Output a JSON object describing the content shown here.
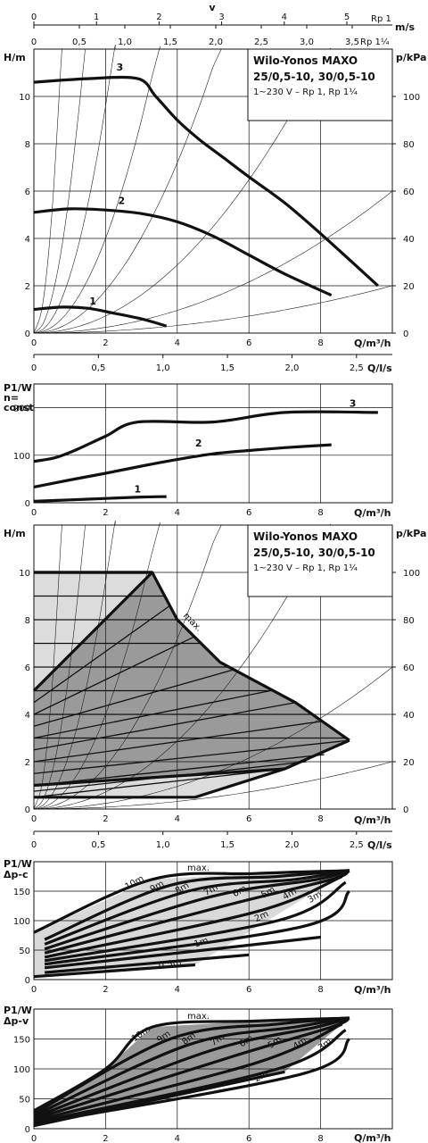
{
  "top_axes": {
    "v_label": "v",
    "v_unit": "m/s",
    "v_ticks_rp1": [
      "0",
      "1",
      "2",
      "3",
      "4",
      "5"
    ],
    "rp1_label": "Rp 1",
    "v_ticks_rp114": [
      "0",
      "0,5",
      "1,0",
      "1,5",
      "2,0",
      "2,5",
      "3,0",
      "3,5"
    ],
    "rp114_label": "Rp 1¼"
  },
  "chart_data": [
    {
      "id": "H-Q constant speed",
      "type": "line",
      "xlabel": "Q/m³/h",
      "ylabel": "H/m",
      "y2label": "p/kPa",
      "xlim": [
        0,
        10
      ],
      "ylim": [
        0,
        12
      ],
      "xticks": [
        "0",
        "2",
        "4",
        "6",
        "8"
      ],
      "yticks": [
        "0",
        "2",
        "4",
        "6",
        "8",
        "10"
      ],
      "y2ticks": [
        "0",
        "20",
        "40",
        "60",
        "80",
        "100"
      ],
      "box": {
        "title1": "Wilo-Yonos MAXO",
        "title2": "25/0,5-10, 30/0,5-10",
        "subtitle": "1~230 V – Rp 1, Rp 1¼"
      },
      "series": [
        {
          "name": "1",
          "x": [
            0,
            0.8,
            1.5,
            2.2,
            3.0,
            3.7
          ],
          "y": [
            1.0,
            1.1,
            1.05,
            0.85,
            0.6,
            0.3
          ]
        },
        {
          "name": "2",
          "x": [
            0,
            1.0,
            2.0,
            3.0,
            4.0,
            5.0,
            6.0,
            7.0,
            8.3
          ],
          "y": [
            5.1,
            5.25,
            5.2,
            5.05,
            4.7,
            4.1,
            3.3,
            2.5,
            1.6
          ]
        },
        {
          "name": "3",
          "x": [
            0,
            1.5,
            2.9,
            3.4,
            4.0,
            4.6,
            5.3,
            6.0,
            7.0,
            8.0,
            9.6
          ],
          "y": [
            10.6,
            10.75,
            10.75,
            10.0,
            9.0,
            8.2,
            7.4,
            6.6,
            5.5,
            4.2,
            2.0
          ]
        }
      ]
    },
    {
      "id": "P1-Q constant speed",
      "type": "line",
      "xlabel": "Q/m³/h",
      "ylabel1": "P1/W",
      "ylabel2": "n=",
      "ylabel3": "const",
      "top_xlabel": "Q/l/s",
      "top_xticks": [
        "0",
        "0,5",
        "1,0",
        "1,5",
        "2,0",
        "2,5"
      ],
      "xlim": [
        0,
        10
      ],
      "ylim": [
        0,
        250
      ],
      "xticks": [
        "0",
        "2",
        "4",
        "6",
        "8"
      ],
      "yticks": [
        "0",
        "100",
        "200"
      ],
      "series": [
        {
          "name": "1",
          "x": [
            0,
            1.0,
            2.0,
            3.0,
            3.7
          ],
          "y": [
            3,
            6,
            9,
            12,
            13
          ]
        },
        {
          "name": "2",
          "x": [
            0,
            1.0,
            2.0,
            3.0,
            4.0,
            5.0,
            6.0,
            7.0,
            8.3
          ],
          "y": [
            33,
            48,
            62,
            77,
            91,
            103,
            110,
            116,
            122
          ]
        },
        {
          "name": "3",
          "x": [
            0,
            0.6,
            1.2,
            2.0,
            2.9,
            5.0,
            7.0,
            9.6
          ],
          "y": [
            87,
            95,
            112,
            140,
            170,
            170,
            190,
            190
          ]
        }
      ]
    },
    {
      "id": "H-Q control range",
      "type": "area",
      "xlabel": "Q/m³/h",
      "ylabel": "H/m",
      "y2label": "p/kPa",
      "xlim": [
        0,
        10
      ],
      "ylim": [
        0,
        12
      ],
      "xticks": [
        "0",
        "2",
        "4",
        "6",
        "8"
      ],
      "yticks": [
        "0",
        "2",
        "4",
        "6",
        "8",
        "10"
      ],
      "y2ticks": [
        "0",
        "20",
        "40",
        "60",
        "80",
        "100"
      ],
      "box": {
        "title1": "Wilo-Yonos MAXO",
        "title2": "25/0,5-10, 30/0,5-10",
        "subtitle": "1~230 V – Rp 1, Rp 1¼"
      },
      "annotation": "max.",
      "envelope_max": {
        "x": [
          0,
          3.3,
          4.0,
          5.2,
          7.3,
          8.8
        ],
        "y": [
          10,
          10,
          8.0,
          6.2,
          4.5,
          2.9
        ]
      },
      "envelope_min": {
        "x": [
          0,
          4.5,
          7.0,
          8.8
        ],
        "y": [
          0.5,
          0.5,
          1.7,
          2.9
        ]
      },
      "dp_c_lines": [
        10,
        9,
        8,
        7,
        6,
        5,
        4,
        3,
        2,
        1,
        0.5
      ],
      "dp_v_start": [
        5,
        4.5,
        4,
        3.5,
        3,
        2.5,
        2,
        1.5,
        1,
        0.75,
        0.5
      ]
    },
    {
      "id": "P1 Δp-c",
      "type": "area",
      "xlabel": "Q/m³/h",
      "ylabel1": "P1/W",
      "ylabel2": "Δp-c",
      "top_xlabel": "Q/l/s",
      "top_xticks": [
        "0",
        "0,5",
        "1,0",
        "1,5",
        "2,0",
        "2,5"
      ],
      "xlim": [
        0,
        10
      ],
      "ylim": [
        0,
        200
      ],
      "xticks": [
        "0",
        "2",
        "4",
        "6",
        "8"
      ],
      "yticks": [
        "0",
        "50",
        "100",
        "150"
      ],
      "annotation": "max.",
      "series": [
        {
          "name": "10m",
          "x": [
            0,
            3.3,
            6.2,
            8.8
          ],
          "y": [
            80,
            170,
            180,
            185
          ]
        },
        {
          "name": "9m",
          "x": [
            0.3,
            3.8,
            6.8,
            8.8
          ],
          "y": [
            68,
            160,
            175,
            185
          ]
        },
        {
          "name": "8m",
          "x": [
            0.3,
            4.3,
            7.3,
            8.8
          ],
          "y": [
            60,
            150,
            170,
            185
          ]
        },
        {
          "name": "7m",
          "x": [
            0.3,
            4.9,
            7.9,
            8.8
          ],
          "y": [
            52,
            140,
            170,
            185
          ]
        },
        {
          "name": "6m",
          "x": [
            0.3,
            5.5,
            8.3,
            8.8
          ],
          "y": [
            45,
            128,
            170,
            185
          ]
        },
        {
          "name": "5m",
          "x": [
            0.3,
            6.2,
            8.6
          ],
          "y": [
            38,
            115,
            175
          ]
        },
        {
          "name": "4m",
          "x": [
            0.3,
            6.8,
            8.7
          ],
          "y": [
            32,
            100,
            165
          ]
        },
        {
          "name": "3m",
          "x": [
            0.3,
            7.5,
            8.8
          ],
          "y": [
            26,
            90,
            150
          ]
        },
        {
          "name": "2m",
          "x": [
            0.3,
            8.0
          ],
          "y": [
            20,
            72
          ]
        },
        {
          "name": "1m",
          "x": [
            0.3,
            6.0
          ],
          "y": [
            12,
            42
          ]
        },
        {
          "name": "0.5m",
          "x": [
            0,
            4.5
          ],
          "y": [
            5,
            25
          ]
        }
      ]
    },
    {
      "id": "P1 Δp-v",
      "type": "area",
      "xlabel": "Q/m³/h",
      "ylabel1": "P1/W",
      "ylabel2": "Δp-v",
      "xlim": [
        0,
        10
      ],
      "ylim": [
        0,
        200
      ],
      "xticks": [
        "0",
        "2",
        "4",
        "6",
        "8"
      ],
      "yticks": [
        "0",
        "50",
        "100",
        "150"
      ],
      "annotation": "max.",
      "series": [
        {
          "name": "10m",
          "x": [
            0,
            2.0,
            3.3,
            6.2,
            8.8
          ],
          "y": [
            30,
            100,
            170,
            180,
            185
          ]
        },
        {
          "name": "9m",
          "x": [
            0,
            3.8,
            6.8,
            8.8
          ],
          "y": [
            25,
            150,
            175,
            185
          ]
        },
        {
          "name": "8m",
          "x": [
            0,
            4.3,
            7.3,
            8.8
          ],
          "y": [
            22,
            140,
            170,
            185
          ]
        },
        {
          "name": "7m",
          "x": [
            0,
            4.9,
            7.9,
            8.8
          ],
          "y": [
            19,
            130,
            170,
            185
          ]
        },
        {
          "name": "6m",
          "x": [
            0,
            5.5,
            8.3,
            8.8
          ],
          "y": [
            16,
            120,
            170,
            185
          ]
        },
        {
          "name": "5m",
          "x": [
            0,
            6.2,
            8.6
          ],
          "y": [
            13,
            110,
            175
          ]
        },
        {
          "name": "4m",
          "x": [
            0,
            6.8,
            8.7
          ],
          "y": [
            10,
            100,
            165
          ]
        },
        {
          "name": "3m",
          "x": [
            0,
            7.5,
            8.8
          ],
          "y": [
            8,
            92,
            150
          ]
        },
        {
          "name": "2m",
          "x": [
            0,
            7.0
          ],
          "y": [
            5,
            95
          ]
        }
      ]
    }
  ]
}
